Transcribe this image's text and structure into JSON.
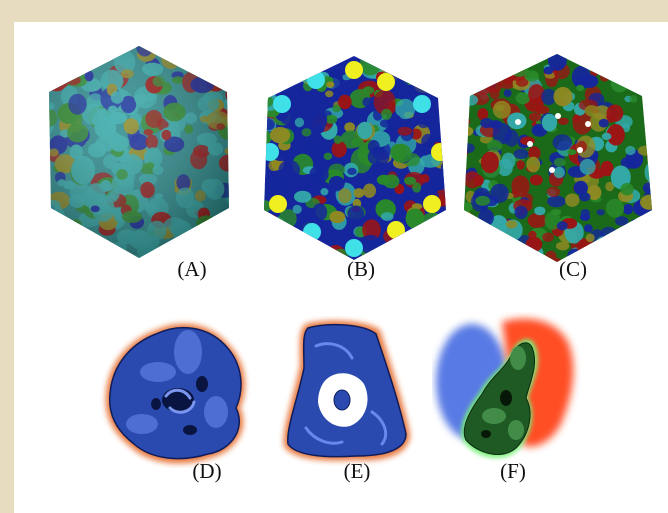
{
  "figure": {
    "background_color": "#e8dcc0",
    "panel_color": "#ffffff",
    "panels": [
      {
        "id": "A",
        "caption": "(A)",
        "icon": "virus-capsid-surface-icon"
      },
      {
        "id": "B",
        "caption": "(B)",
        "icon": "virus-capsid-ribbon-icon"
      },
      {
        "id": "C",
        "caption": "(C)",
        "icon": "virus-capsid-spacefill-icon"
      },
      {
        "id": "D",
        "caption": "(D)",
        "icon": "protein-density-map-icon"
      },
      {
        "id": "E",
        "caption": "(E)",
        "icon": "trimer-density-map-icon"
      },
      {
        "id": "F",
        "caption": "(F)",
        "icon": "subunit-segmentation-icon"
      }
    ],
    "palette": {
      "cyan": "#33a9a9",
      "olive": "#8f8a22",
      "green": "#2a8a2a",
      "blue": "#15269c",
      "red": "#9c1414",
      "yellow": "#f0f020",
      "light_cyan": "#40e0e8",
      "map_blue": "#2a4ab0",
      "map_glow": "#e56a2a"
    }
  }
}
